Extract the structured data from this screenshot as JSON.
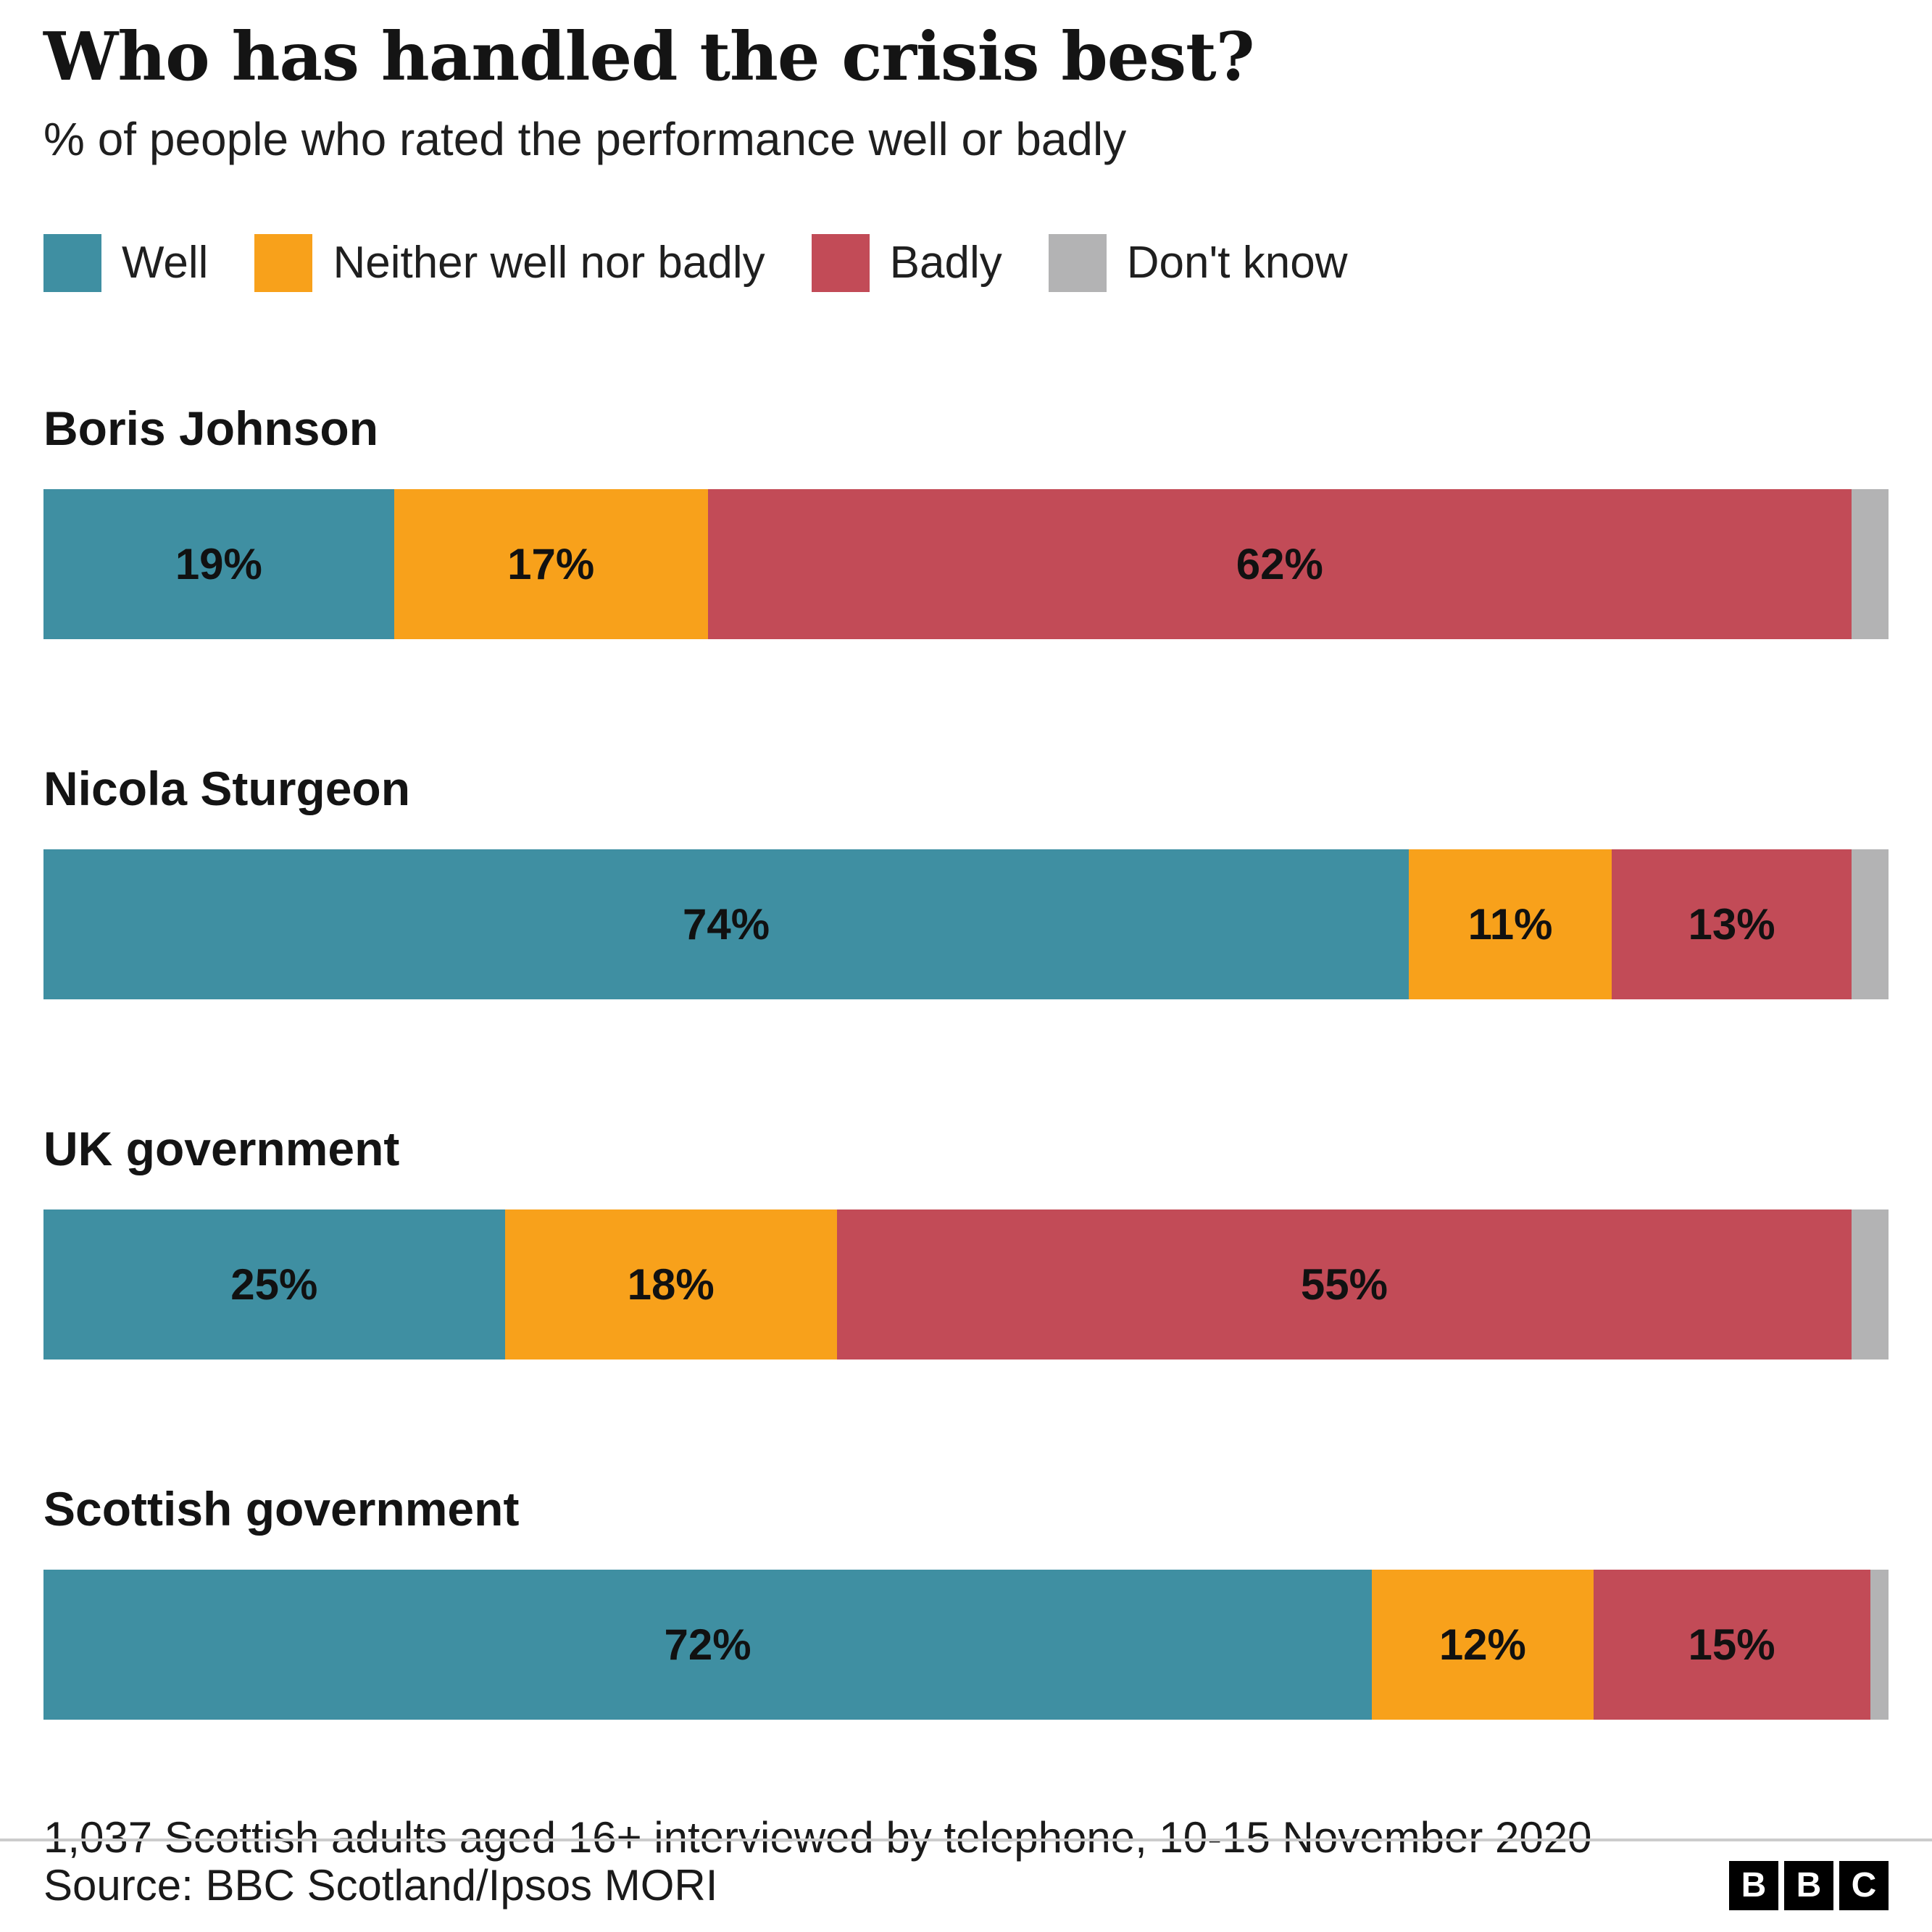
{
  "title": "Who has handled the crisis best?",
  "subtitle": "% of people who rated the performance well or badly",
  "legend": [
    {
      "label": "Well",
      "color": "#3f8fa2"
    },
    {
      "label": "Neither well nor badly",
      "color": "#f8a11b"
    },
    {
      "label": "Badly",
      "color": "#c24b57"
    },
    {
      "label": "Don't know",
      "color": "#b3b3b4"
    }
  ],
  "footnote": "1,037 Scottish adults aged 16+ interviewed by telephone, 10-15 November 2020",
  "source": "Source: BBC Scotland/Ipsos MORI",
  "logo_letters": [
    "B",
    "B",
    "C"
  ],
  "chart_data": {
    "type": "bar",
    "variant": "horizontal-stacked",
    "title": "Who has handled the crisis best?",
    "subtitle": "% of people who rated the performance well or badly",
    "value_suffix": "%",
    "xlim": [
      0,
      100
    ],
    "categories": [
      "Boris Johnson",
      "Nicola Sturgeon",
      "UK government",
      "Scottish government"
    ],
    "series": [
      {
        "name": "Well",
        "color": "#3f8fa2",
        "show_labels": true,
        "values": [
          19,
          74,
          25,
          72
        ]
      },
      {
        "name": "Neither well nor badly",
        "color": "#f8a11b",
        "show_labels": true,
        "values": [
          17,
          11,
          18,
          12
        ]
      },
      {
        "name": "Badly",
        "color": "#c24b57",
        "show_labels": true,
        "values": [
          62,
          13,
          55,
          15
        ]
      },
      {
        "name": "Don't know",
        "color": "#b3b3b4",
        "show_labels": false,
        "values": [
          2,
          2,
          2,
          1
        ]
      }
    ],
    "legend_position": "top",
    "grid": false
  }
}
